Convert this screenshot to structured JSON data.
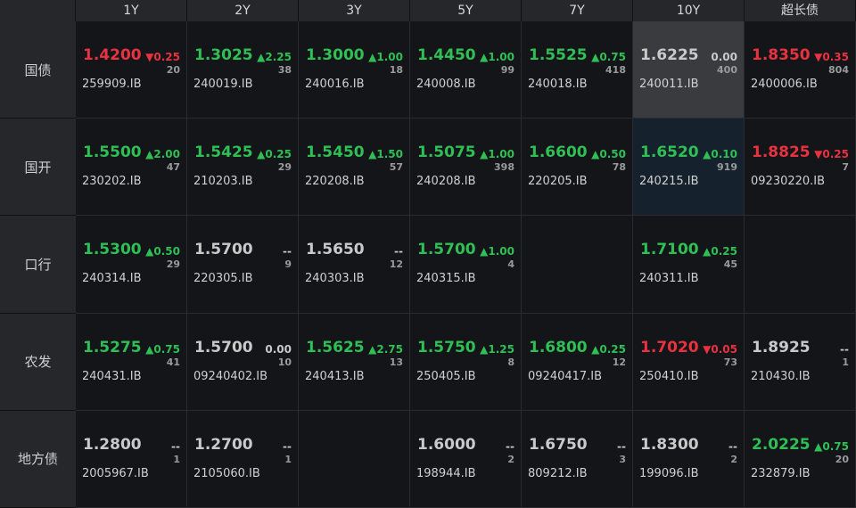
{
  "table": {
    "columns": [
      "1Y",
      "2Y",
      "3Y",
      "5Y",
      "7Y",
      "10Y",
      "超长债"
    ],
    "colors": {
      "up": "#2fbf55",
      "down": "#e8323f",
      "flat": "#c9c9c9"
    },
    "rows": [
      {
        "label": "国债",
        "cells": [
          {
            "price": "1.4200",
            "dir": "down",
            "change": "0.25",
            "count": "20",
            "code": "259909.IB"
          },
          {
            "price": "1.3025",
            "dir": "up",
            "change": "2.25",
            "count": "38",
            "code": "240019.IB"
          },
          {
            "price": "1.3000",
            "dir": "up",
            "change": "1.00",
            "count": "18",
            "code": "240016.IB"
          },
          {
            "price": "1.4450",
            "dir": "up",
            "change": "1.00",
            "count": "99",
            "code": "240008.IB"
          },
          {
            "price": "1.5525",
            "dir": "up",
            "change": "0.75",
            "count": "418",
            "code": "240018.IB"
          },
          {
            "price": "1.6225",
            "dir": "flat",
            "change": "0.00",
            "count": "400",
            "code": "240011.IB",
            "background": "#3a3b3e"
          },
          {
            "price": "1.8350",
            "dir": "down",
            "change": "0.35",
            "count": "804",
            "code": "2400006.IB"
          }
        ]
      },
      {
        "label": "国开",
        "cells": [
          {
            "price": "1.5500",
            "dir": "up",
            "change": "2.00",
            "count": "47",
            "code": "230202.IB"
          },
          {
            "price": "1.5425",
            "dir": "up",
            "change": "0.25",
            "count": "29",
            "code": "210203.IB"
          },
          {
            "price": "1.5450",
            "dir": "up",
            "change": "1.50",
            "count": "57",
            "code": "220208.IB"
          },
          {
            "price": "1.5075",
            "dir": "up",
            "change": "1.00",
            "count": "398",
            "code": "240208.IB"
          },
          {
            "price": "1.6600",
            "dir": "up",
            "change": "0.50",
            "count": "78",
            "code": "220205.IB"
          },
          {
            "price": "1.6520",
            "dir": "up",
            "change": "0.10",
            "count": "919",
            "code": "240215.IB",
            "background": "#15222e"
          },
          {
            "price": "1.8825",
            "dir": "down",
            "change": "0.25",
            "count": "7",
            "code": "09230220.IB"
          }
        ]
      },
      {
        "label": "口行",
        "cells": [
          {
            "price": "1.5300",
            "dir": "up",
            "change": "0.50",
            "count": "29",
            "code": "240314.IB"
          },
          {
            "price": "1.5700",
            "dir": "flat",
            "change": "--",
            "count": "9",
            "code": "220305.IB"
          },
          {
            "price": "1.5650",
            "dir": "flat",
            "change": "--",
            "count": "12",
            "code": "240303.IB"
          },
          {
            "price": "1.5700",
            "dir": "up",
            "change": "1.00",
            "count": "4",
            "code": "240315.IB"
          },
          null,
          {
            "price": "1.7100",
            "dir": "up",
            "change": "0.25",
            "count": "45",
            "code": "240311.IB"
          },
          null
        ]
      },
      {
        "label": "农发",
        "cells": [
          {
            "price": "1.5275",
            "dir": "up",
            "change": "0.75",
            "count": "41",
            "code": "240431.IB"
          },
          {
            "price": "1.5700",
            "dir": "flat",
            "change": "0.00",
            "count": "10",
            "code": "09240402.IB"
          },
          {
            "price": "1.5625",
            "dir": "up",
            "change": "2.75",
            "count": "13",
            "code": "240413.IB"
          },
          {
            "price": "1.5750",
            "dir": "up",
            "change": "1.25",
            "count": "8",
            "code": "250405.IB"
          },
          {
            "price": "1.6800",
            "dir": "up",
            "change": "0.25",
            "count": "12",
            "code": "09240417.IB"
          },
          {
            "price": "1.7020",
            "dir": "down",
            "change": "0.05",
            "count": "73",
            "code": "250410.IB"
          },
          {
            "price": "1.8925",
            "dir": "flat",
            "change": "--",
            "count": "1",
            "code": "210430.IB"
          }
        ]
      },
      {
        "label": "地方债",
        "cells": [
          {
            "price": "1.2800",
            "dir": "flat",
            "change": "--",
            "count": "1",
            "code": "2005967.IB"
          },
          {
            "price": "1.2700",
            "dir": "flat",
            "change": "--",
            "count": "1",
            "code": "2105060.IB"
          },
          null,
          {
            "price": "1.6000",
            "dir": "flat",
            "change": "--",
            "count": "2",
            "code": "198944.IB"
          },
          {
            "price": "1.6750",
            "dir": "flat",
            "change": "--",
            "count": "3",
            "code": "809212.IB"
          },
          {
            "price": "1.8300",
            "dir": "flat",
            "change": "--",
            "count": "2",
            "code": "199096.IB"
          },
          {
            "price": "2.0225",
            "dir": "up",
            "change": "0.75",
            "count": "20",
            "code": "232879.IB"
          }
        ]
      }
    ]
  }
}
